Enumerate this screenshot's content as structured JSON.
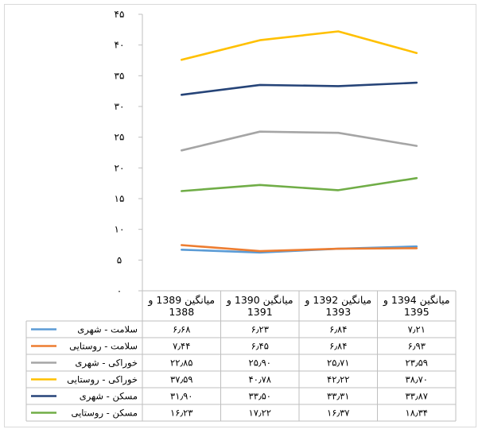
{
  "chart_data": {
    "type": "line",
    "categories": [
      "میانگین 1389 و 1388",
      "میانگین 1390 و 1391",
      "میانگین 1392 و 1393",
      "میانگین 1394 و 1395"
    ],
    "category_lines": [
      [
        "میانگین 1389 و",
        "1388"
      ],
      [
        "میانگین 1390 و",
        "1391"
      ],
      [
        "میانگین 1392 و",
        "1393"
      ],
      [
        "میانگین 1394 و",
        "1395"
      ]
    ],
    "y_ticks": [
      "۰",
      "۵",
      "۱۰",
      "۱۵",
      "۲۰",
      "۲۵",
      "۳۰",
      "۳۵",
      "۴۰",
      "۴۵"
    ],
    "ylim": [
      0,
      45
    ],
    "grid": false,
    "legend": "data-table",
    "series": [
      {
        "name": "سلامت - شهری",
        "color": "#5b9bd5",
        "values": [
          6.68,
          6.23,
          6.84,
          7.21
        ],
        "labels": [
          "۶٫۶۸",
          "۶٫۲۳",
          "۶٫۸۴",
          "۷٫۲۱"
        ]
      },
      {
        "name": "سلامت - روستایی",
        "color": "#ed7d31",
        "values": [
          7.44,
          6.45,
          6.84,
          6.93
        ],
        "labels": [
          "۷٫۴۴",
          "۶٫۴۵",
          "۶٫۸۴",
          "۶٫۹۳"
        ]
      },
      {
        "name": "خوراکی - شهری",
        "color": "#a5a5a5",
        "values": [
          22.85,
          25.9,
          25.71,
          23.59
        ],
        "labels": [
          "۲۲٫۸۵",
          "۲۵٫۹۰",
          "۲۵٫۷۱",
          "۲۳٫۵۹"
        ]
      },
      {
        "name": "خوراکی - روستایی",
        "color": "#ffc000",
        "values": [
          37.59,
          40.78,
          42.22,
          38.7
        ],
        "labels": [
          "۳۷٫۵۹",
          "۴۰٫۷۸",
          "۴۲٫۲۲",
          "۳۸٫۷۰"
        ]
      },
      {
        "name": "مسکن - شهری",
        "color": "#264478",
        "values": [
          31.9,
          33.5,
          33.31,
          33.87
        ],
        "labels": [
          "۳۱٫۹۰",
          "۳۳٫۵۰",
          "۳۳٫۳۱",
          "۳۳٫۸۷"
        ]
      },
      {
        "name": "مسکن - روستایی",
        "color": "#70ad47",
        "values": [
          16.23,
          17.22,
          16.37,
          18.34
        ],
        "labels": [
          "۱۶٫۲۳",
          "۱۷٫۲۲",
          "۱۶٫۳۷",
          "۱۸٫۳۴"
        ]
      }
    ]
  }
}
